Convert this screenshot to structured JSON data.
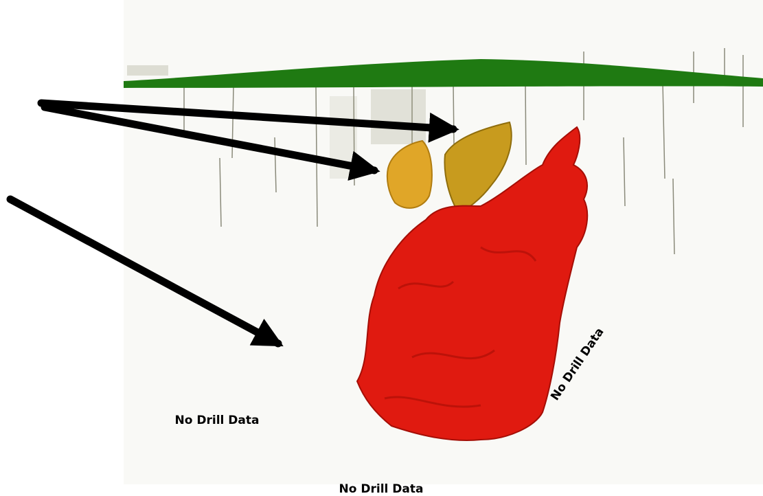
{
  "annotations": {
    "left": "No Drill Data",
    "right": "No Drill Data",
    "bottom": "No Drill Data"
  }
}
